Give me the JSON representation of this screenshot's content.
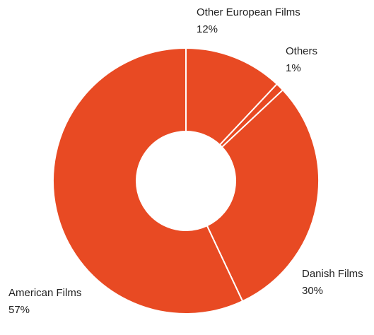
{
  "chart_data": {
    "type": "donut",
    "categories": [
      "Other European Films",
      "Others",
      "Danish Films",
      "American Films"
    ],
    "values": [
      12,
      1,
      30,
      57
    ],
    "value_labels": [
      "12%",
      "1%",
      "30%",
      "57%"
    ],
    "color": "#e84a23"
  }
}
